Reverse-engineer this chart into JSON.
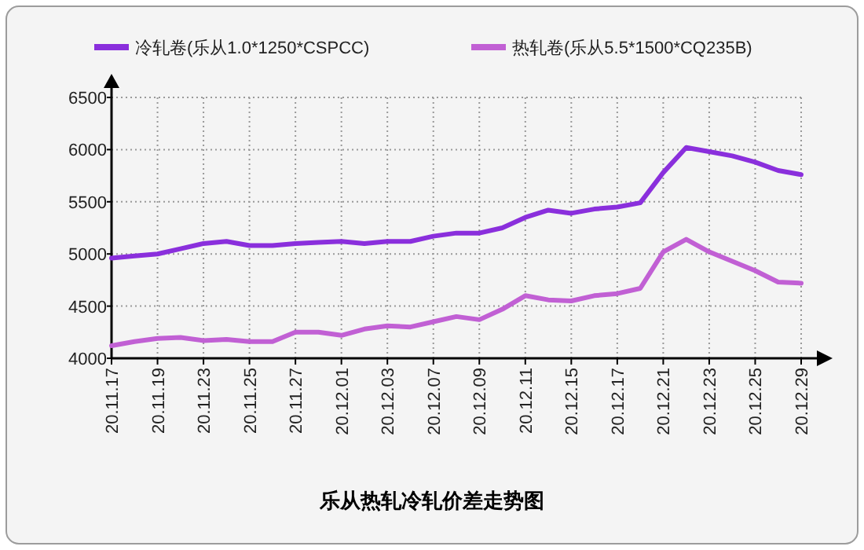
{
  "chart_data": {
    "type": "line",
    "title": "乐从热轧冷轧价差走势图",
    "categories": [
      "20.11.17",
      null,
      "20.11.19",
      null,
      "20.11.23",
      null,
      "20.11.25",
      null,
      "20.11.27",
      null,
      "20.12.01",
      null,
      "20.12.03",
      null,
      "20.12.07",
      null,
      "20.12.09",
      null,
      "20.12.11",
      null,
      "20.12.15",
      null,
      "20.12.17",
      null,
      "20.12.21",
      null,
      "20.12.23",
      null,
      "20.12.25",
      null,
      "20.12.29"
    ],
    "series": [
      {
        "name": "冷轧卷(乐从1.0*1250*CSPCC)",
        "color": "#8a2fdc",
        "values": [
          4960,
          4980,
          5000,
          5050,
          5100,
          5120,
          5080,
          5080,
          5100,
          5110,
          5120,
          5100,
          5120,
          5120,
          5170,
          5200,
          5200,
          5250,
          5350,
          5420,
          5390,
          5430,
          5450,
          5490,
          5780,
          6020,
          5980,
          5940,
          5880,
          5800,
          5760
        ]
      },
      {
        "name": "热轧卷(乐从5.5*1500*CQ235B)",
        "color": "#c160d4",
        "values": [
          4120,
          4160,
          4190,
          4200,
          4170,
          4180,
          4160,
          4160,
          4250,
          4250,
          4220,
          4280,
          4310,
          4300,
          4350,
          4400,
          4370,
          4470,
          4600,
          4560,
          4550,
          4600,
          4620,
          4670,
          5020,
          5140,
          5020,
          4930,
          4840,
          4730,
          4720
        ]
      }
    ],
    "ylim": [
      4000,
      6500
    ],
    "yticks": [
      4000,
      4500,
      5000,
      5500,
      6000,
      6500
    ],
    "grid": true,
    "legend": "top"
  }
}
